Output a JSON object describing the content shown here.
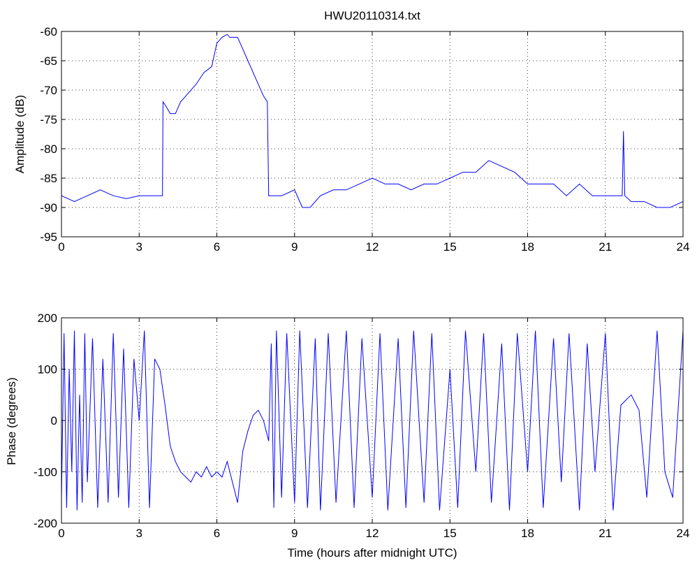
{
  "chart_data": [
    {
      "type": "line",
      "title": "HWU20110314.txt",
      "xlabel": "",
      "ylabel": "Amplitude (dB)",
      "xlim": [
        0,
        24
      ],
      "ylim": [
        -95,
        -60
      ],
      "xticks": [
        0,
        3,
        6,
        9,
        12,
        15,
        18,
        21,
        24
      ],
      "yticks": [
        -60,
        -65,
        -70,
        -75,
        -80,
        -85,
        -90,
        -95
      ],
      "grid": true,
      "series_color": "#0000ff",
      "series": [
        {
          "x": [
            0,
            0.5,
            1,
            1.5,
            2,
            2.5,
            3,
            3.5,
            3.9,
            3.92,
            4.0,
            4.2,
            4.4,
            4.6,
            4.8,
            5.0,
            5.2,
            5.5,
            5.8,
            6.0,
            6.2,
            6.4,
            6.5,
            6.8,
            7.0,
            7.2,
            7.4,
            7.6,
            7.8,
            7.95,
            8.0,
            8.1,
            8.5,
            9.0,
            9.3,
            9.6,
            10.0,
            10.5,
            11.0,
            11.5,
            12.0,
            12.5,
            13.0,
            13.5,
            14.0,
            14.5,
            15.0,
            15.5,
            16.0,
            16.5,
            17.0,
            17.5,
            18.0,
            18.5,
            19.0,
            19.5,
            20.0,
            20.5,
            21.0,
            21.5,
            21.65,
            21.7,
            21.75,
            22.0,
            22.5,
            23.0,
            23.5,
            24.0
          ],
          "y": [
            -88,
            -89,
            -88,
            -87,
            -88,
            -88.5,
            -88,
            -88,
            -88,
            -72,
            -72.5,
            -74,
            -74,
            -72,
            -71,
            -70,
            -69,
            -67,
            -66,
            -62,
            -61,
            -60.5,
            -61,
            -61,
            -63,
            -65,
            -67,
            -69,
            -71,
            -72,
            -88,
            -88,
            -88,
            -87,
            -90,
            -90,
            -88,
            -87,
            -87,
            -86,
            -85,
            -86,
            -86,
            -87,
            -86,
            -86,
            -85,
            -84,
            -84,
            -82,
            -83,
            -84,
            -86,
            -86,
            -86,
            -88,
            -86,
            -88,
            -88,
            -88,
            -88,
            -77,
            -88,
            -89,
            -89,
            -90,
            -90,
            -89
          ]
        }
      ]
    },
    {
      "type": "line",
      "title": "",
      "xlabel": "Time (hours after midnight UTC)",
      "ylabel": "Phase (degrees)",
      "xlim": [
        0,
        24
      ],
      "ylim": [
        -200,
        200
      ],
      "xticks": [
        0,
        3,
        6,
        9,
        12,
        15,
        18,
        21,
        24
      ],
      "yticks": [
        200,
        100,
        0,
        -100,
        -200
      ],
      "grid": true,
      "series_color": "#0000ff",
      "series": [
        {
          "x": [
            0,
            0.1,
            0.2,
            0.3,
            0.4,
            0.5,
            0.6,
            0.7,
            0.8,
            0.9,
            1.0,
            1.2,
            1.4,
            1.6,
            1.8,
            2.0,
            2.2,
            2.4,
            2.6,
            2.8,
            3.0,
            3.2,
            3.4,
            3.6,
            3.8,
            4.0,
            4.2,
            4.4,
            4.6,
            4.8,
            5.0,
            5.2,
            5.4,
            5.6,
            5.8,
            6.0,
            6.2,
            6.4,
            6.6,
            6.8,
            7.0,
            7.2,
            7.4,
            7.6,
            7.8,
            8.0,
            8.1,
            8.2,
            8.3,
            8.5,
            8.7,
            9.0,
            9.2,
            9.5,
            9.8,
            10.0,
            10.3,
            10.6,
            11.0,
            11.3,
            11.6,
            12.0,
            12.3,
            12.6,
            13.0,
            13.3,
            13.6,
            14.0,
            14.3,
            14.6,
            15.0,
            15.3,
            15.6,
            16.0,
            16.3,
            16.6,
            17.0,
            17.3,
            17.6,
            18.0,
            18.3,
            18.6,
            19.0,
            19.3,
            19.6,
            20.0,
            20.3,
            20.6,
            21.0,
            21.3,
            21.6,
            22.0,
            22.3,
            22.6,
            23.0,
            23.3,
            23.6,
            24.0
          ],
          "y": [
            -150,
            170,
            -170,
            100,
            -100,
            175,
            -175,
            50,
            -160,
            170,
            -120,
            160,
            -170,
            120,
            -160,
            170,
            -150,
            140,
            -170,
            120,
            0,
            175,
            -170,
            120,
            100,
            30,
            -50,
            -80,
            -100,
            -110,
            -120,
            -100,
            -110,
            -90,
            -110,
            -100,
            -110,
            -80,
            -120,
            -160,
            -60,
            -20,
            10,
            20,
            0,
            -40,
            150,
            -170,
            175,
            -150,
            170,
            -160,
            175,
            -170,
            160,
            -175,
            170,
            -160,
            175,
            -170,
            160,
            -150,
            170,
            -175,
            160,
            -170,
            175,
            -160,
            170,
            -175,
            100,
            -170,
            175,
            -100,
            170,
            -160,
            150,
            -175,
            170,
            -100,
            175,
            -170,
            160,
            -120,
            170,
            -175,
            150,
            -100,
            170,
            -175,
            30,
            50,
            20,
            -150,
            175,
            -100,
            -150,
            175
          ]
        }
      ]
    }
  ]
}
